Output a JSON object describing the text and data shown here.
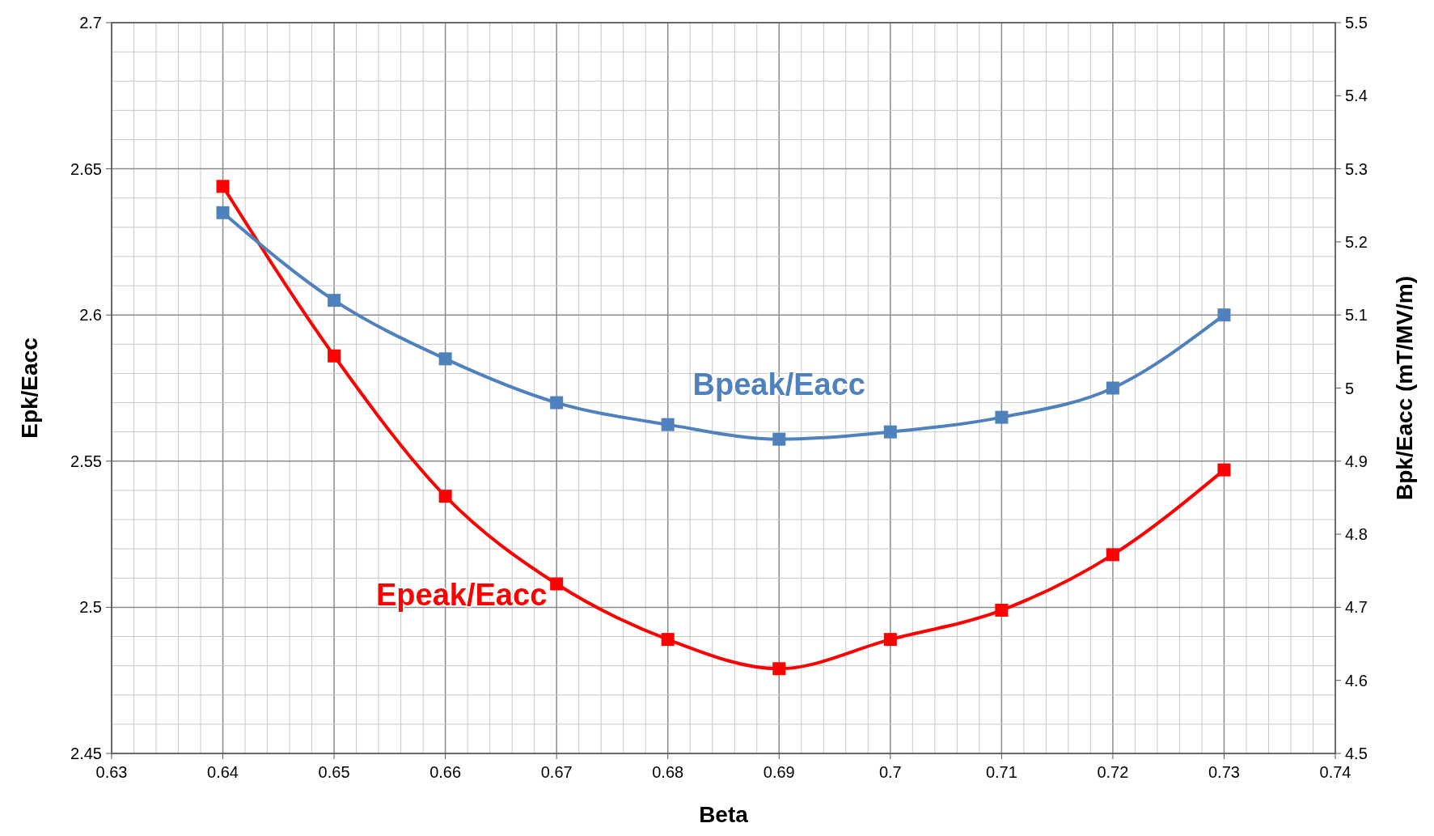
{
  "chart_data": {
    "type": "line",
    "xlabel": "Beta",
    "ylabel": "Epk/Eacc",
    "y2label": "Bpk/Eacc (mT/MV/m)",
    "x": [
      0.64,
      0.65,
      0.66,
      0.67,
      0.68,
      0.69,
      0.7,
      0.71,
      0.72,
      0.73
    ],
    "series": [
      {
        "name": "Epeak/Eacc",
        "color": "#ff0000",
        "values": [
          2.644,
          2.586,
          2.538,
          2.508,
          2.489,
          2.479,
          2.489,
          2.499,
          2.518,
          2.547
        ]
      },
      {
        "name": "Bpeak/Eacc",
        "color": "#4f81bd",
        "axis": "y2",
        "values": [
          5.24,
          5.12,
          5.04,
          4.98,
          4.95,
          4.93,
          4.94,
          4.96,
          5.0,
          5.1
        ]
      }
    ],
    "xlim": [
      0.63,
      0.74
    ],
    "xticks": [
      0.63,
      {
        "value": 0.632,
        "label": null
      },
      {
        "value": 0.634,
        "label": null
      },
      {
        "value": 0.636,
        "label": null
      },
      {
        "value": 0.638,
        "label": null
      },
      0.64,
      {
        "value": 0.642,
        "label": null
      },
      {
        "value": 0.644,
        "label": null
      },
      {
        "value": 0.646,
        "label": null
      },
      {
        "value": 0.648,
        "label": null
      },
      0.65,
      {
        "value": 0.652,
        "label": null
      },
      {
        "value": 0.654,
        "label": null
      },
      {
        "value": 0.656,
        "label": null
      },
      {
        "value": 0.658,
        "label": null
      },
      0.66,
      {
        "value": 0.662,
        "label": null
      },
      {
        "value": 0.664,
        "label": null
      },
      {
        "value": 0.666,
        "label": null
      },
      {
        "value": 0.668,
        "label": null
      },
      0.67,
      {
        "value": 0.672,
        "label": null
      },
      {
        "value": 0.674,
        "label": null
      },
      {
        "value": 0.676,
        "label": null
      },
      {
        "value": 0.678,
        "label": null
      },
      0.68,
      {
        "value": 0.682,
        "label": null
      },
      {
        "value": 0.684,
        "label": null
      },
      {
        "value": 0.686,
        "label": null
      },
      {
        "value": 0.688,
        "label": null
      },
      0.69,
      {
        "value": 0.692,
        "label": null
      },
      {
        "value": 0.694,
        "label": null
      },
      {
        "value": 0.696,
        "label": null
      },
      {
        "value": 0.698,
        "label": null
      },
      0.7,
      {
        "value": 0.702,
        "label": null
      },
      {
        "value": 0.704,
        "label": null
      },
      {
        "value": 0.706,
        "label": null
      },
      {
        "value": 0.708,
        "label": null
      },
      0.71,
      {
        "value": 0.712,
        "label": null
      },
      {
        "value": 0.714,
        "label": null
      },
      {
        "value": 0.716,
        "label": null
      },
      {
        "value": 0.718,
        "label": null
      },
      0.72,
      {
        "value": 0.722,
        "label": null
      },
      {
        "value": 0.724,
        "label": null
      },
      {
        "value": 0.726,
        "label": null
      },
      {
        "value": 0.728,
        "label": null
      },
      0.73,
      {
        "value": 0.732,
        "label": null
      },
      {
        "value": 0.734,
        "label": null
      },
      {
        "value": 0.736,
        "label": null
      },
      {
        "value": 0.738,
        "label": null
      },
      0.74
    ],
    "ylim": [
      2.45,
      2.7
    ],
    "yticks": [
      2.45,
      {
        "value": 2.46,
        "label": null
      },
      {
        "value": 2.47,
        "label": null
      },
      {
        "value": 2.48,
        "label": null
      },
      {
        "value": 2.49,
        "label": null
      },
      2.5,
      {
        "value": 2.51,
        "label": null
      },
      {
        "value": 2.52,
        "label": null
      },
      {
        "value": 2.53,
        "label": null
      },
      {
        "value": 2.54,
        "label": null
      },
      2.55,
      {
        "value": 2.56,
        "label": null
      },
      {
        "value": 2.57,
        "label": null
      },
      {
        "value": 2.58,
        "label": null
      },
      {
        "value": 2.59,
        "label": null
      },
      2.6,
      {
        "value": 2.61,
        "label": null
      },
      {
        "value": 2.62,
        "label": null
      },
      {
        "value": 2.63,
        "label": null
      },
      {
        "value": 2.64,
        "label": null
      },
      2.65,
      {
        "value": 2.66,
        "label": null
      },
      {
        "value": 2.67,
        "label": null
      },
      {
        "value": 2.68,
        "label": null
      },
      {
        "value": 2.69,
        "label": null
      },
      2.7
    ],
    "y2lim": [
      4.5,
      5.5
    ],
    "y2ticks": [
      4.5,
      4.6,
      4.7,
      4.8,
      4.9,
      5,
      5.1,
      5.2,
      5.3,
      5.4,
      5.5
    ],
    "grid": true,
    "marker": "square",
    "line_style": "solid"
  }
}
